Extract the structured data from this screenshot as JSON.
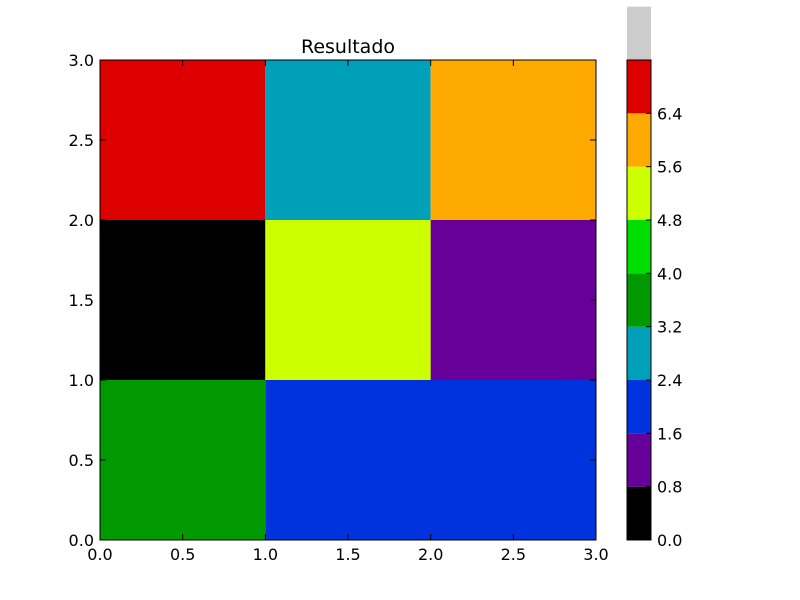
{
  "chart_data": {
    "type": "heatmap",
    "title": "Resultado",
    "xlabel": "",
    "ylabel": "",
    "xlim": [
      0,
      3
    ],
    "ylim": [
      0,
      3
    ],
    "x_ticks": [
      "0.0",
      "0.5",
      "1.0",
      "1.5",
      "2.0",
      "2.5",
      "3.0"
    ],
    "y_ticks": [
      "0.0",
      "0.5",
      "1.0",
      "1.5",
      "2.0",
      "2.5",
      "3.0"
    ],
    "grid": false,
    "cells": [
      {
        "x0": 0,
        "x1": 1,
        "y0": 0,
        "y1": 1,
        "value": 3.6
      },
      {
        "x0": 1,
        "x1": 3,
        "y0": 0,
        "y1": 1,
        "value": 1.6
      },
      {
        "x0": 0,
        "x1": 1,
        "y0": 1,
        "y1": 2,
        "value": 0.0
      },
      {
        "x0": 1,
        "x1": 2,
        "y0": 1,
        "y1": 2,
        "value": 5.2
      },
      {
        "x0": 2,
        "x1": 3,
        "y0": 1,
        "y1": 2,
        "value": 0.8
      },
      {
        "x0": 0,
        "x1": 1,
        "y0": 2,
        "y1": 3,
        "value": 6.4
      },
      {
        "x0": 1,
        "x1": 2,
        "y0": 2,
        "y1": 3,
        "value": 2.8
      },
      {
        "x0": 2,
        "x1": 3,
        "y0": 2,
        "y1": 3,
        "value": 5.6
      }
    ],
    "colorbar": {
      "min": 0.0,
      "max": 7.2,
      "step": 0.8,
      "colors": [
        "#000000",
        "#660099",
        "#0033dd",
        "#00a0b8",
        "#009900",
        "#00dd00",
        "#ccff00",
        "#ffaa00",
        "#dd0000",
        "#cccccc"
      ],
      "ticks": [
        "0.0",
        "0.8",
        "1.6",
        "2.4",
        "3.2",
        "4.0",
        "4.8",
        "5.6",
        "6.4"
      ]
    }
  }
}
